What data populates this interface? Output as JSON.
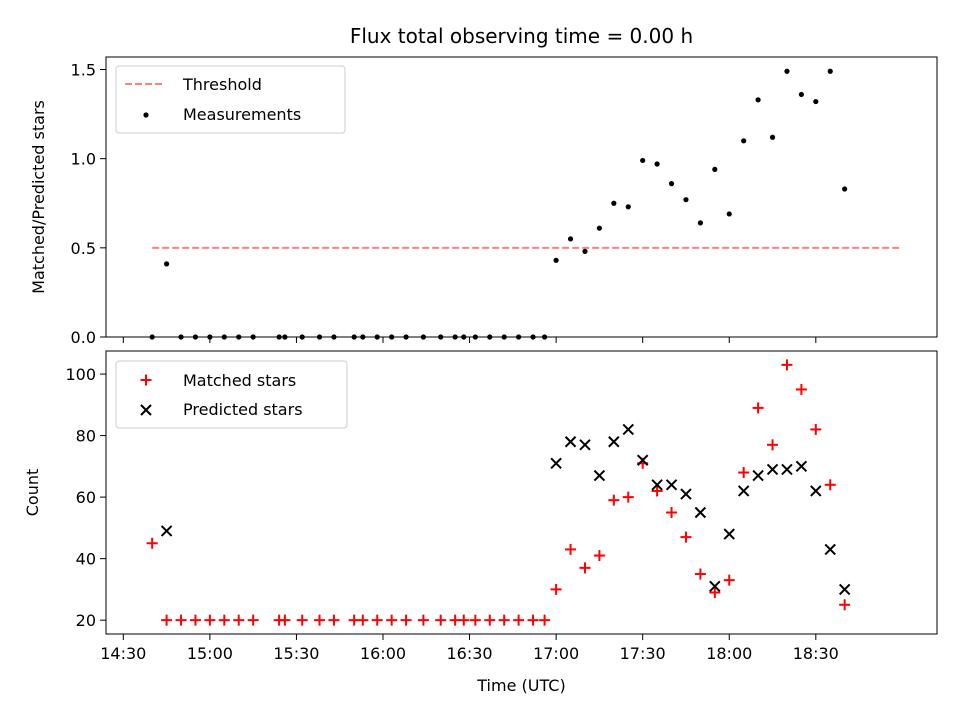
{
  "chart_data": [
    {
      "type": "scatter",
      "title": "Flux total observing time = 0.00 h",
      "xlabel": "",
      "ylabel": "Matched/Predicted stars",
      "xlim": [
        "14:24",
        "19:12"
      ],
      "ylim": [
        0,
        1.57
      ],
      "yticks": [
        0.0,
        0.5,
        1.0,
        1.5
      ],
      "ytick_labels": [
        "0.0",
        "0.5",
        "1.0",
        "1.5"
      ],
      "xticks": [
        "14:30",
        "15:00",
        "15:30",
        "16:00",
        "16:30",
        "17:00",
        "17:30",
        "18:00",
        "18:30"
      ],
      "x_ticklabels_shown": false,
      "legend_position": "upper-left",
      "threshold": {
        "name": "Threshold",
        "value": 0.5,
        "x_range": [
          "14:40",
          "19:00"
        ],
        "color": "#ff8080",
        "style": "dashed"
      },
      "series": [
        {
          "name": "Measurements",
          "color": "#000000",
          "marker": "dot",
          "points": [
            [
              "14:40",
              0.0
            ],
            [
              "14:45",
              0.41
            ],
            [
              "14:50",
              0.0
            ],
            [
              "14:55",
              0.0
            ],
            [
              "15:00",
              0.0
            ],
            [
              "15:05",
              0.0
            ],
            [
              "15:10",
              0.0
            ],
            [
              "15:15",
              0.0
            ],
            [
              "15:24",
              0.0
            ],
            [
              "15:26",
              0.0
            ],
            [
              "15:32",
              0.0
            ],
            [
              "15:38",
              0.0
            ],
            [
              "15:43",
              0.0
            ],
            [
              "15:50",
              0.0
            ],
            [
              "15:53",
              0.0
            ],
            [
              "15:58",
              0.0
            ],
            [
              "16:03",
              0.0
            ],
            [
              "16:08",
              0.0
            ],
            [
              "16:14",
              0.0
            ],
            [
              "16:20",
              0.0
            ],
            [
              "16:25",
              0.0
            ],
            [
              "16:28",
              0.0
            ],
            [
              "16:32",
              0.0
            ],
            [
              "16:37",
              0.0
            ],
            [
              "16:42",
              0.0
            ],
            [
              "16:47",
              0.0
            ],
            [
              "16:52",
              0.0
            ],
            [
              "16:56",
              0.0
            ],
            [
              "17:00",
              0.43
            ],
            [
              "17:05",
              0.55
            ],
            [
              "17:10",
              0.48
            ],
            [
              "17:15",
              0.61
            ],
            [
              "17:20",
              0.75
            ],
            [
              "17:25",
              0.73
            ],
            [
              "17:30",
              0.99
            ],
            [
              "17:35",
              0.97
            ],
            [
              "17:40",
              0.86
            ],
            [
              "17:45",
              0.77
            ],
            [
              "17:50",
              0.64
            ],
            [
              "17:55",
              0.94
            ],
            [
              "18:00",
              0.69
            ],
            [
              "18:05",
              1.1
            ],
            [
              "18:10",
              1.33
            ],
            [
              "18:15",
              1.12
            ],
            [
              "18:20",
              1.49
            ],
            [
              "18:25",
              1.36
            ],
            [
              "18:30",
              1.32
            ],
            [
              "18:35",
              1.49
            ],
            [
              "18:40",
              0.83
            ]
          ]
        }
      ]
    },
    {
      "type": "scatter",
      "title": "",
      "xlabel": "Time (UTC)",
      "ylabel": "Count",
      "xlim": [
        "14:24",
        "19:12"
      ],
      "ylim": [
        15.5,
        107.5
      ],
      "yticks": [
        20,
        40,
        60,
        80,
        100
      ],
      "ytick_labels": [
        "20",
        "40",
        "60",
        "80",
        "100"
      ],
      "xticks": [
        "14:30",
        "15:00",
        "15:30",
        "16:00",
        "16:30",
        "17:00",
        "17:30",
        "18:00",
        "18:30"
      ],
      "x_ticklabels_shown": true,
      "legend_position": "upper-left",
      "series": [
        {
          "name": "Matched stars",
          "color": "#ff0000",
          "marker": "plus",
          "points": [
            [
              "14:40",
              45
            ],
            [
              "14:45",
              20
            ],
            [
              "14:50",
              20
            ],
            [
              "14:55",
              20
            ],
            [
              "15:00",
              20
            ],
            [
              "15:05",
              20
            ],
            [
              "15:10",
              20
            ],
            [
              "15:15",
              20
            ],
            [
              "15:24",
              20
            ],
            [
              "15:26",
              20
            ],
            [
              "15:32",
              20
            ],
            [
              "15:38",
              20
            ],
            [
              "15:43",
              20
            ],
            [
              "15:50",
              20
            ],
            [
              "15:53",
              20
            ],
            [
              "15:58",
              20
            ],
            [
              "16:03",
              20
            ],
            [
              "16:08",
              20
            ],
            [
              "16:14",
              20
            ],
            [
              "16:20",
              20
            ],
            [
              "16:25",
              20
            ],
            [
              "16:28",
              20
            ],
            [
              "16:32",
              20
            ],
            [
              "16:37",
              20
            ],
            [
              "16:42",
              20
            ],
            [
              "16:47",
              20
            ],
            [
              "16:52",
              20
            ],
            [
              "16:56",
              20
            ],
            [
              "17:00",
              30
            ],
            [
              "17:05",
              43
            ],
            [
              "17:10",
              37
            ],
            [
              "17:15",
              41
            ],
            [
              "17:20",
              59
            ],
            [
              "17:25",
              60
            ],
            [
              "17:30",
              71
            ],
            [
              "17:35",
              62
            ],
            [
              "17:40",
              55
            ],
            [
              "17:45",
              47
            ],
            [
              "17:50",
              35
            ],
            [
              "17:55",
              29
            ],
            [
              "18:00",
              33
            ],
            [
              "18:05",
              68
            ],
            [
              "18:10",
              89
            ],
            [
              "18:15",
              77
            ],
            [
              "18:20",
              103
            ],
            [
              "18:25",
              95
            ],
            [
              "18:30",
              82
            ],
            [
              "18:35",
              64
            ],
            [
              "18:40",
              25
            ]
          ]
        },
        {
          "name": "Predicted stars",
          "color": "#000000",
          "marker": "x",
          "points": [
            [
              "14:45",
              49
            ],
            [
              "17:00",
              71
            ],
            [
              "17:05",
              78
            ],
            [
              "17:10",
              77
            ],
            [
              "17:15",
              67
            ],
            [
              "17:20",
              78
            ],
            [
              "17:25",
              82
            ],
            [
              "17:30",
              72
            ],
            [
              "17:35",
              64
            ],
            [
              "17:40",
              64
            ],
            [
              "17:45",
              61
            ],
            [
              "17:50",
              55
            ],
            [
              "17:55",
              31
            ],
            [
              "18:00",
              48
            ],
            [
              "18:05",
              62
            ],
            [
              "18:10",
              67
            ],
            [
              "18:15",
              69
            ],
            [
              "18:20",
              69
            ],
            [
              "18:25",
              70
            ],
            [
              "18:30",
              62
            ],
            [
              "18:35",
              43
            ],
            [
              "18:40",
              30
            ]
          ]
        }
      ]
    }
  ]
}
